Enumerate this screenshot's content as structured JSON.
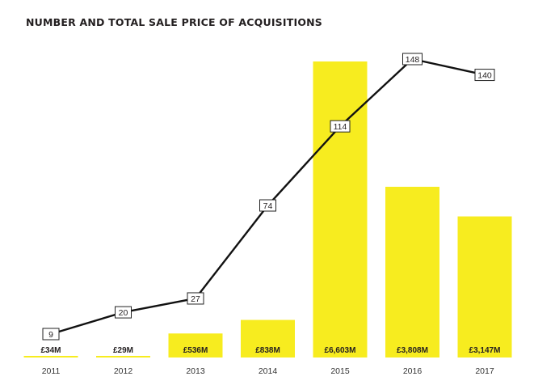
{
  "title": "NUMBER AND TOTAL SALE PRICE OF ACQUISITIONS",
  "colors": {
    "bar": "#f7ec1f",
    "line": "#111111",
    "label_box_border": "#222222",
    "axis_text": "#333333"
  },
  "chart_data": {
    "type": "bar",
    "categories": [
      "2011",
      "2012",
      "2013",
      "2014",
      "2015",
      "2016",
      "2017"
    ],
    "series": [
      {
        "type": "bar",
        "values": [
          34,
          29,
          536,
          838,
          6603,
          3808,
          3147
        ],
        "labels": [
          "£34M",
          "£29M",
          "£536M",
          "£838M",
          "£6,603M",
          "£3,808M",
          "£3,147M"
        ]
      },
      {
        "type": "line",
        "values": [
          9,
          20,
          27,
          74,
          114,
          148,
          140
        ],
        "labels": [
          "9",
          "20",
          "27",
          "74",
          "114",
          "148",
          "140"
        ]
      }
    ],
    "grid": false,
    "legend": "none"
  }
}
